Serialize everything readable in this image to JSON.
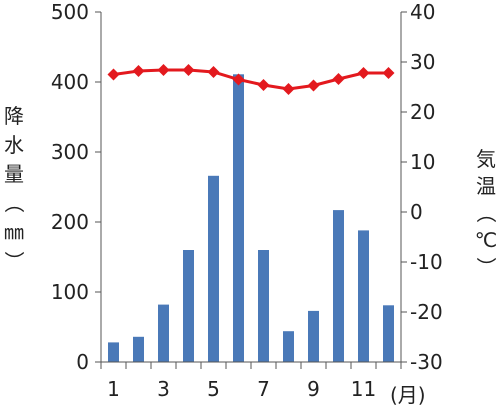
{
  "chart_data": {
    "type": "bar+line",
    "categories": [
      1,
      2,
      3,
      4,
      5,
      6,
      7,
      8,
      9,
      10,
      11,
      12
    ],
    "x_tick_labels": [
      "1",
      "3",
      "5",
      "7",
      "9",
      "11"
    ],
    "x_unit": "(月)",
    "series": [
      {
        "kind": "bar",
        "axis": "left",
        "values": [
          28,
          36,
          82,
          160,
          266,
          411,
          160,
          44,
          73,
          217,
          188,
          81
        ],
        "color": "#4a79b8"
      },
      {
        "kind": "line",
        "axis": "right",
        "values": [
          27.5,
          28.2,
          28.4,
          28.4,
          28.0,
          26.5,
          25.4,
          24.6,
          25.3,
          26.6,
          27.8,
          27.8
        ],
        "color": "#e3191e"
      }
    ],
    "y_left": {
      "label": "降水量（㎜）",
      "ylim": [
        0,
        500
      ],
      "ticks": [
        "0",
        "100",
        "200",
        "300",
        "400",
        "500"
      ]
    },
    "y_right": {
      "label": "気温（℃）",
      "ylim": [
        -30,
        40
      ],
      "ticks": [
        "-30",
        "-20",
        "-10",
        "0",
        "10",
        "20",
        "30",
        "40"
      ]
    },
    "grid": false,
    "legend": "none"
  }
}
